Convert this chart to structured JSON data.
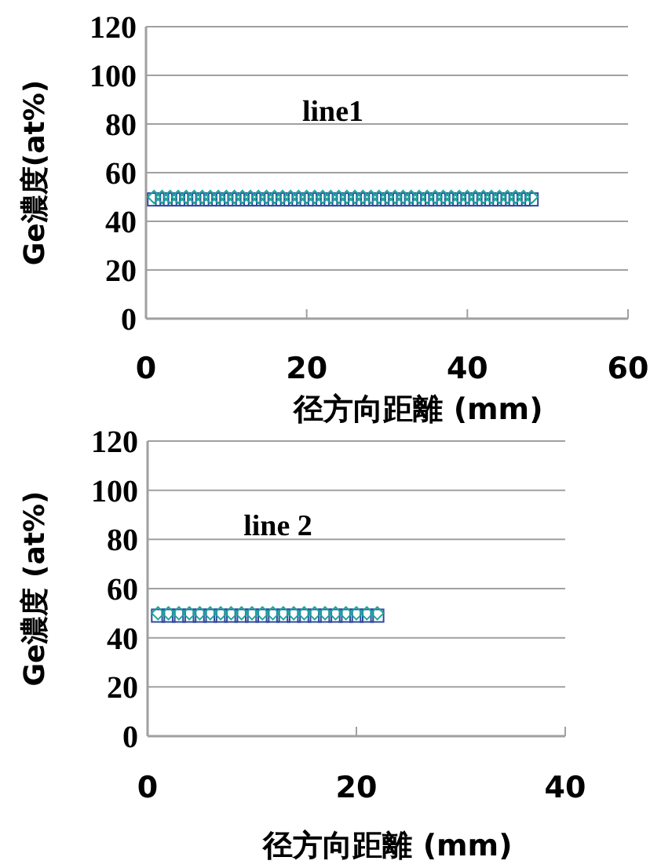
{
  "chart_data": [
    {
      "type": "scatter",
      "xlabel": "径方向距離 (mm)",
      "ylabel": "Ge濃度(at%)",
      "annotations": [
        "line1"
      ],
      "grid": "y",
      "xlim": [
        0,
        60
      ],
      "xticks": [
        0,
        20,
        40,
        60
      ],
      "ylim": [
        0,
        120
      ],
      "yticks": [
        0,
        20,
        40,
        60,
        80,
        100,
        120
      ],
      "series": [
        {
          "color": "#2e4a9e",
          "marker": "square",
          "x": [
            1,
            2,
            3,
            4,
            5,
            6,
            7,
            8,
            9,
            10,
            11,
            12,
            13,
            14,
            15,
            16,
            17,
            18,
            19,
            20,
            21,
            22,
            23,
            24,
            25,
            26,
            27,
            28,
            29,
            30,
            31,
            32,
            33,
            34,
            35,
            36,
            37,
            38,
            39,
            40,
            41,
            42,
            43,
            44,
            45,
            46,
            47,
            48
          ],
          "values": [
            49,
            49,
            49,
            49,
            49,
            49,
            49,
            49,
            49,
            49,
            49,
            49,
            49,
            49,
            49,
            49,
            49,
            49,
            49,
            49,
            49,
            49,
            49,
            49,
            49,
            49,
            49,
            49,
            49,
            49,
            49,
            49,
            49,
            49,
            49,
            49,
            49,
            49,
            49,
            49,
            49,
            49,
            49,
            49,
            49,
            49,
            49,
            49
          ]
        },
        {
          "color": "#1aa59a",
          "marker": "diamond",
          "x": [
            1,
            2,
            3,
            4,
            5,
            6,
            7,
            8,
            9,
            10,
            11,
            12,
            13,
            14,
            15,
            16,
            17,
            18,
            19,
            20,
            21,
            22,
            23,
            24,
            25,
            26,
            27,
            28,
            29,
            30,
            31,
            32,
            33,
            34,
            35,
            36,
            37,
            38,
            39,
            40,
            41,
            42,
            43,
            44,
            45,
            46,
            47,
            48
          ],
          "values": [
            50,
            50,
            50,
            50,
            50,
            50,
            50,
            50,
            50,
            50,
            50,
            50,
            50,
            50,
            50,
            50,
            50,
            50,
            50,
            50,
            50,
            50,
            50,
            50,
            50,
            50,
            50,
            50,
            50,
            50,
            50,
            50,
            50,
            50,
            50,
            50,
            50,
            50,
            50,
            50,
            50,
            50,
            50,
            50,
            50,
            50,
            50,
            50
          ]
        }
      ]
    },
    {
      "type": "scatter",
      "xlabel": "径方向距離 (mm)",
      "ylabel": "Ge濃度 (at%)",
      "annotations": [
        "line 2"
      ],
      "grid": "y",
      "xlim": [
        0,
        40
      ],
      "xticks": [
        0,
        20,
        40
      ],
      "ylim": [
        0,
        120
      ],
      "yticks": [
        0,
        20,
        40,
        60,
        80,
        100,
        120
      ],
      "series": [
        {
          "color": "#2e4a9e",
          "marker": "square",
          "x": [
            1,
            2,
            3,
            4,
            5,
            6,
            7,
            8,
            9,
            10,
            11,
            12,
            13,
            14,
            15,
            16,
            17,
            18,
            19,
            20,
            21,
            22
          ],
          "values": [
            49,
            49,
            49,
            49,
            49,
            49,
            49,
            49,
            49,
            49,
            49,
            49,
            49,
            49,
            49,
            49,
            49,
            49,
            49,
            49,
            49,
            49
          ]
        },
        {
          "color": "#1aa59a",
          "marker": "diamond",
          "x": [
            1,
            2,
            3,
            4,
            5,
            6,
            7,
            8,
            9,
            10,
            11,
            12,
            13,
            14,
            15,
            16,
            17,
            18,
            19,
            20,
            21,
            22
          ],
          "values": [
            50,
            50,
            50,
            50,
            50,
            50,
            50,
            50,
            50,
            50,
            50,
            50,
            50,
            50,
            50,
            50,
            50,
            50,
            50,
            50,
            50,
            50
          ]
        }
      ]
    }
  ]
}
